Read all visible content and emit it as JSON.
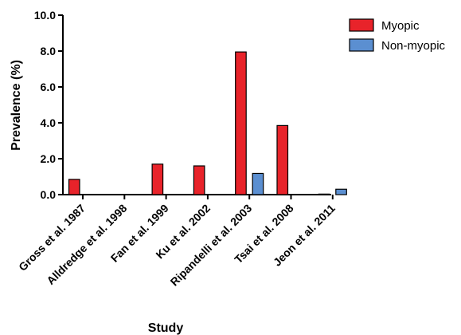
{
  "chart_data": {
    "type": "bar",
    "title": "",
    "xlabel": "Study",
    "ylabel": "Prevalence (%)",
    "ylim": [
      0,
      10
    ],
    "yticks": [
      "0.0",
      "2.0",
      "4.0",
      "6.0",
      "8.0",
      "10.0"
    ],
    "categories": [
      "Gross et al. 1987",
      "Alldredge et al. 1998",
      "Fan et al. 1999",
      "Ku et al. 2002",
      "Ripandelli et al. 2003",
      "Tsai et al. 2008",
      "Jeon et al. 2011"
    ],
    "series": [
      {
        "name": "Myopic",
        "color": "#e8232a",
        "values": [
          0.85,
          0,
          1.7,
          1.6,
          7.95,
          3.85,
          0.03
        ]
      },
      {
        "name": "Non-myopic",
        "color": "#5b8fd1",
        "values": [
          0,
          0,
          0,
          0,
          1.18,
          0,
          0.3
        ]
      }
    ],
    "legend_position": "top-right",
    "grid": false
  }
}
